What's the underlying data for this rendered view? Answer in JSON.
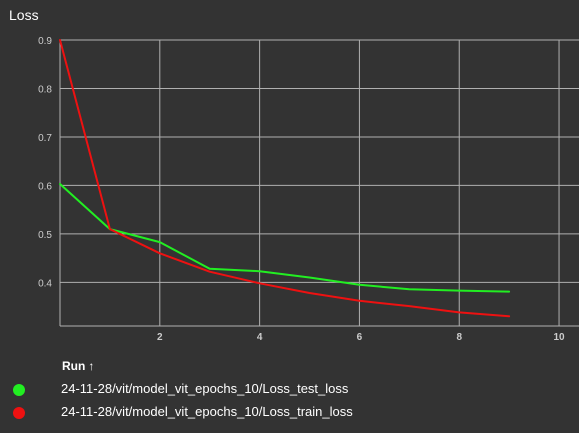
{
  "title": "Loss",
  "legend": {
    "header": "Run",
    "sort_icon": "arrow-up-icon",
    "sort_glyph": "↑"
  },
  "colors": {
    "background": "#333333",
    "grid": "#b0b0b0",
    "tick_label": "#cccccc"
  },
  "chart_data": {
    "type": "line",
    "title": "Loss",
    "xlabel": "",
    "ylabel": "",
    "xlim": [
      0,
      10.4
    ],
    "ylim": [
      0.31,
      0.9
    ],
    "xticks": [
      2,
      4,
      6,
      8,
      10
    ],
    "yticks": [
      0.4,
      0.5,
      0.6,
      0.7,
      0.8,
      0.9
    ],
    "grid": true,
    "legend_position": "bottom",
    "x": [
      0,
      1,
      2,
      3,
      4,
      5,
      6,
      7,
      8,
      9
    ],
    "series": [
      {
        "name": "24-11-28/vit/model_vit_epochs_10/Loss_test_loss",
        "color": "#22ee22",
        "values": [
          0.603,
          0.51,
          0.483,
          0.428,
          0.423,
          0.41,
          0.395,
          0.386,
          0.383,
          0.381
        ]
      },
      {
        "name": "24-11-28/vit/model_vit_epochs_10/Loss_train_loss",
        "color": "#ee1111",
        "values": [
          0.9,
          0.51,
          0.46,
          0.422,
          0.398,
          0.378,
          0.362,
          0.351,
          0.338,
          0.33
        ]
      }
    ]
  }
}
